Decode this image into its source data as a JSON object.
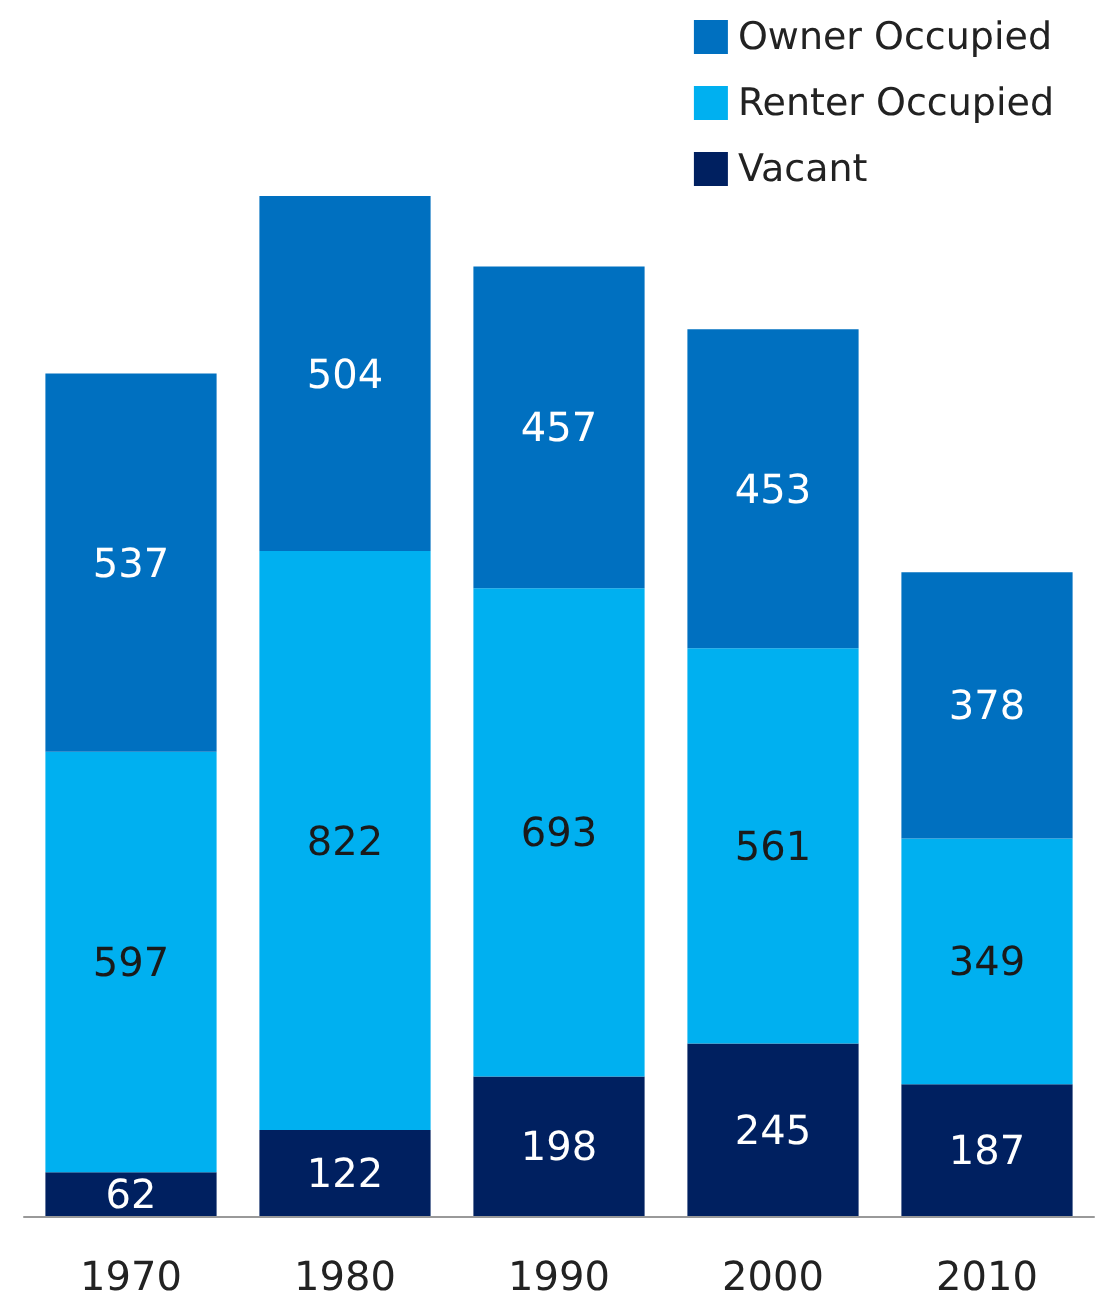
{
  "chart_data": {
    "type": "bar",
    "stacked": true,
    "data_labels": true,
    "legend": "top right",
    "tick_labels": "x",
    "categories": [
      "1970",
      "1980",
      "1990",
      "2000",
      "2010"
    ],
    "series": [
      {
        "name": "Vacant",
        "color": "#002060",
        "values": [
          62,
          122,
          198,
          245,
          187
        ]
      },
      {
        "name": "Renter Occupied",
        "color": "#00b0f0",
        "values": [
          597,
          822,
          693,
          561,
          349
        ]
      },
      {
        "name": "Owner Occupied",
        "color": "#0070c0",
        "values": [
          537,
          504,
          457,
          453,
          378
        ]
      }
    ]
  }
}
